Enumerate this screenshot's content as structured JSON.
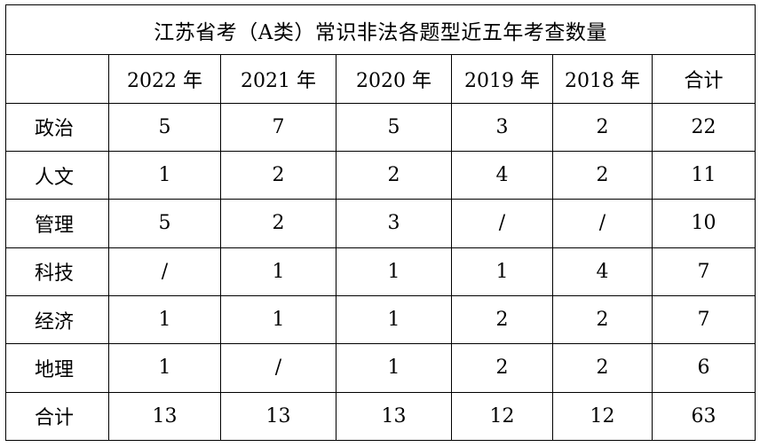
{
  "title": "江苏省考（A类）常识非法各题型近五年考查数量",
  "header": {
    "corner": "",
    "columns": [
      "2022 年",
      "2021 年",
      "2020 年",
      "2019 年",
      "2018 年",
      "合计"
    ]
  },
  "rows": [
    {
      "label": "政治",
      "values": [
        "5",
        "7",
        "5",
        "3",
        "2",
        "22"
      ]
    },
    {
      "label": "人文",
      "values": [
        "1",
        "2",
        "2",
        "4",
        "2",
        "11"
      ]
    },
    {
      "label": "管理",
      "values": [
        "5",
        "2",
        "3",
        "/",
        "/",
        "10"
      ]
    },
    {
      "label": "科技",
      "values": [
        "/",
        "1",
        "1",
        "1",
        "4",
        "7"
      ]
    },
    {
      "label": "经济",
      "values": [
        "1",
        "1",
        "1",
        "2",
        "2",
        "7"
      ]
    },
    {
      "label": "地理",
      "values": [
        "1",
        "/",
        "1",
        "2",
        "2",
        "6"
      ]
    },
    {
      "label": "合计",
      "values": [
        "13",
        "13",
        "13",
        "12",
        "12",
        "63"
      ]
    }
  ]
}
